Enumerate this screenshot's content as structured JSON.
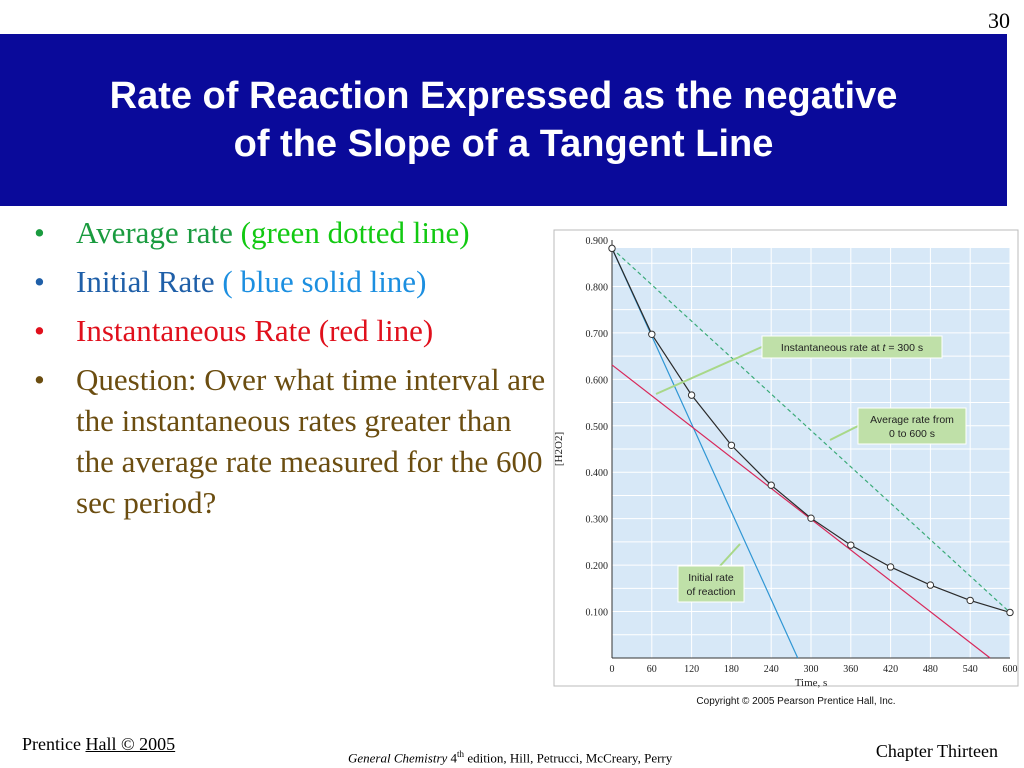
{
  "slide": {
    "number": "30",
    "title_line1": "Rate of Reaction Expressed as the negative",
    "title_line2": "of the Slope of a Tangent Line"
  },
  "bullets": {
    "b1_part1": "Average rate ",
    "b1_part2": "(green dotted line)",
    "b2_part1": "Initial Rate ",
    "b2_part2": "( blue solid line)",
    "b3": "Instantaneous Rate (red line)",
    "b4": "Question:  Over what time interval are the instantaneous rates greater than the average rate measured for the 600 sec period?",
    "bullet_glyph": "•"
  },
  "colors": {
    "title_bg": "#0a0a9a",
    "green_text": "#1a9b3f",
    "light_green_text": "#12c912",
    "blue_text": "#1f5fa8",
    "light_blue_text": "#1c8fe0",
    "red_text": "#e0101c",
    "brown_text": "#6b4d10",
    "plot_bg": "#d7e8f7",
    "curve": "#2a2a2a",
    "average_line": "#3aaa78",
    "initial_line": "#2f96d4",
    "instantaneous_line": "#d8285a",
    "callout_bg": "#bfe0a8"
  },
  "chart_data": {
    "type": "line",
    "xlabel": "Time, s",
    "ylabel": "[H2O2]",
    "xlim": [
      0,
      600
    ],
    "ylim": [
      0,
      0.9
    ],
    "x_ticks": [
      0,
      60,
      120,
      180,
      240,
      300,
      360,
      420,
      480,
      540,
      600
    ],
    "y_ticks": [
      0.1,
      0.2,
      0.3,
      0.4,
      0.5,
      0.6,
      0.7,
      0.8,
      0.9
    ],
    "y_tick_labels": [
      "0.100",
      "0.200",
      "0.300",
      "0.400",
      "0.500",
      "0.600",
      "0.700",
      "0.800",
      "0.900"
    ],
    "grid": true,
    "series": [
      {
        "name": "[H2O2]",
        "x": [
          0,
          60,
          120,
          180,
          240,
          300,
          360,
          420,
          480,
          540,
          600
        ],
        "y": [
          0.882,
          0.697,
          0.566,
          0.458,
          0.372,
          0.301,
          0.243,
          0.196,
          0.157,
          0.124,
          0.098
        ]
      }
    ],
    "lines": [
      {
        "kind": "average",
        "x": [
          0,
          600
        ],
        "y": [
          0.882,
          0.098
        ]
      },
      {
        "kind": "initial",
        "x": [
          0,
          280
        ],
        "y": [
          0.882,
          0.0
        ]
      },
      {
        "kind": "instantaneous",
        "x": [
          0,
          570
        ],
        "y": [
          0.631,
          0.0
        ]
      }
    ],
    "annotations": {
      "instantaneous_label_before_t": "Instantaneous rate at ",
      "instantaneous_label_t": "t",
      "instantaneous_label_after_t": " = 300 s",
      "average_label_line1": "Average rate from",
      "average_label_line2": "0 to 600 s",
      "initial_label_line1": "Initial rate",
      "initial_label_line2": "of reaction"
    },
    "copyright": "Copyright © 2005 Pearson Prentice Hall, Inc."
  },
  "footer": {
    "left_part1": "Prentice ",
    "left_part2": "Hall © 2005",
    "center_italic": "General Chemistry",
    "center_ed": " 4",
    "center_sup": "th",
    "center_rest": " edition, Hill, Petrucci, McCreary, Perry",
    "right": "Chapter Thirteen"
  }
}
